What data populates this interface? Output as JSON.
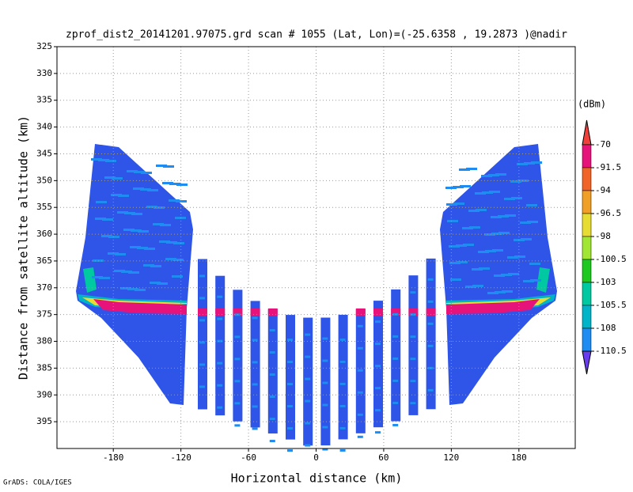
{
  "chart_data": {
    "type": "radar-profile",
    "title": "zprof_dist2_20141201.97075.grd  scan # 1055  (Lat, Lon)=(-25.6358 , 19.2873 )@nadir",
    "x_label": "Horizontal distance (km)",
    "y_label": "Distance from satellite altitude (km)",
    "footer": "GrADS: COLA/IGES",
    "xlim": [
      -230,
      230
    ],
    "xticks": [
      -180,
      -120,
      -60,
      0,
      60,
      120,
      180
    ],
    "ylim": [
      325,
      400
    ],
    "yticks": [
      325,
      330,
      335,
      340,
      345,
      350,
      355,
      360,
      365,
      370,
      375,
      380,
      385,
      390,
      395
    ],
    "y_inverted": true,
    "grid": true,
    "colorbar": {
      "unit": "(dBm)",
      "levels": [
        -70,
        -91.5,
        -94,
        -96.5,
        -98,
        -100.5,
        -103,
        -105.5,
        -108,
        -110.5
      ],
      "colors": [
        "#f0403c",
        "#e6147a",
        "#f06428",
        "#f0a028",
        "#e6dc32",
        "#a0e632",
        "#1ec81e",
        "#00c8a0",
        "#00b4c8",
        "#1e8cf0",
        "#6a3cf0"
      ]
    }
  }
}
